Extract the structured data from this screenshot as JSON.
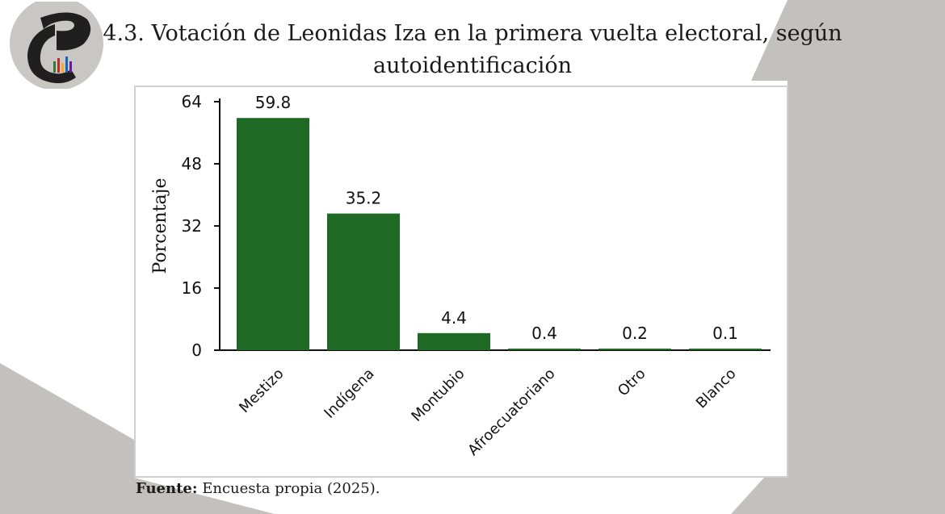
{
  "header": {
    "title_line1": "4.3. Votación de Leonidas Iza en la primera vuelta electoral, según",
    "title_line2": "autoidentificación",
    "logo_icon": "brand-logo-icon"
  },
  "source": {
    "label": "Fuente:",
    "text": "Encuesta propia (2025)."
  },
  "colors": {
    "bar": "#1e6a24",
    "background_shape": "#c2c1bd",
    "logo_circle": "#c8c7c3",
    "logo_mark": "#1f1f1f"
  },
  "chart_data": {
    "type": "bar",
    "title": "",
    "xlabel": "",
    "ylabel": "Porcentaje",
    "categories": [
      "Mestizo",
      "Indígena",
      "Montubio",
      "Afroecuatoriano",
      "Otro",
      "Blanco"
    ],
    "values": [
      59.8,
      35.2,
      4.4,
      0.4,
      0.2,
      0.1
    ],
    "data_labels": [
      "59.8",
      "35.2",
      "4.4",
      "0.4",
      "0.2",
      "0.1"
    ],
    "ylim": [
      0,
      64
    ],
    "yticks": [
      0,
      16,
      32,
      48,
      64
    ],
    "grid": false,
    "legend": "none"
  }
}
